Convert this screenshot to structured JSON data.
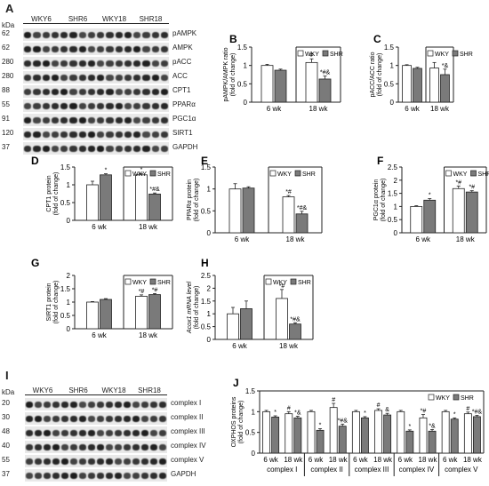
{
  "blot_A": {
    "label": "A",
    "kda_header": "kDa",
    "groups": [
      "WKY6",
      "SHR6",
      "WKY18",
      "SHR18"
    ],
    "rows": [
      {
        "kda": "62",
        "protein": "pAMPK"
      },
      {
        "kda": "62",
        "protein": "AMPK"
      },
      {
        "kda": "280",
        "protein": "pACC"
      },
      {
        "kda": "280",
        "protein": "ACC"
      },
      {
        "kda": "88",
        "protein": "CPT1"
      },
      {
        "kda": "55",
        "protein": "PPARα"
      },
      {
        "kda": "91",
        "protein": "PGC1α"
      },
      {
        "kda": "120",
        "protein": "SIRT1"
      },
      {
        "kda": "37",
        "protein": "GAPDH"
      }
    ]
  },
  "blot_I": {
    "label": "I",
    "kda_header": "kDa",
    "groups": [
      "WKY6",
      "SHR6",
      "WKY18",
      "SHR18"
    ],
    "rows": [
      {
        "kda": "20",
        "protein": "complex I"
      },
      {
        "kda": "30",
        "protein": "complex II"
      },
      {
        "kda": "48",
        "protein": "complex III"
      },
      {
        "kda": "40",
        "protein": "complex IV"
      },
      {
        "kda": "55",
        "protein": "complex V"
      },
      {
        "kda": "37",
        "protein": "GAPDH"
      }
    ]
  },
  "legend": {
    "wky": "WKY",
    "shr": "SHR"
  },
  "colors": {
    "wky": "#ffffff",
    "shr": "#7a7a7a"
  },
  "chart_data": [
    {
      "panel": "B",
      "type": "bar",
      "ylabel": "pAMPK/AMPK ratio (fold of change)",
      "ylim": [
        0,
        1.5
      ],
      "yticks": [
        "0",
        "0.5",
        "1",
        "1.5"
      ],
      "categories": [
        "6 wk",
        "18 wk"
      ],
      "series": [
        {
          "name": "WKY",
          "values": [
            1.0,
            1.08
          ],
          "errors": [
            0.03,
            0.1
          ],
          "annotations": [
            "",
            "#"
          ]
        },
        {
          "name": "SHR",
          "values": [
            0.87,
            0.63
          ],
          "errors": [
            0.03,
            0.08
          ],
          "annotations": [
            "",
            "*#&"
          ]
        }
      ]
    },
    {
      "panel": "C",
      "type": "bar",
      "ylabel": "pACC/ACC ratio (fold of change)",
      "ylim": [
        0,
        1.5
      ],
      "yticks": [
        "0",
        "0.5",
        "1",
        "1.5"
      ],
      "categories": [
        "6 wk",
        "18 wk"
      ],
      "series": [
        {
          "name": "WKY",
          "values": [
            1.0,
            0.93
          ],
          "errors": [
            0.02,
            0.15
          ],
          "annotations": [
            "",
            ""
          ]
        },
        {
          "name": "SHR",
          "values": [
            0.92,
            0.75
          ],
          "errors": [
            0.03,
            0.15
          ],
          "annotations": [
            "",
            "*&"
          ]
        }
      ]
    },
    {
      "panel": "D",
      "type": "bar",
      "ylabel": "CPT1 protein (fold of change)",
      "ylim": [
        0,
        1.5
      ],
      "yticks": [
        "0",
        "0.5",
        "1",
        "1.5"
      ],
      "categories": [
        "6 wk",
        "18 wk"
      ],
      "series": [
        {
          "name": "WKY",
          "values": [
            1.0,
            1.28
          ],
          "errors": [
            0.1,
            0.04
          ],
          "annotations": [
            "",
            "*"
          ]
        },
        {
          "name": "SHR",
          "values": [
            1.28,
            0.74
          ],
          "errors": [
            0.03,
            0.03
          ],
          "annotations": [
            "*",
            "*#&"
          ]
        }
      ]
    },
    {
      "panel": "E",
      "type": "bar",
      "ylabel": "PPARα protein (fold of change)",
      "ylim": [
        0,
        1.5
      ],
      "yticks": [
        "0",
        "0.5",
        "1",
        "1.5"
      ],
      "categories": [
        "6 wk",
        "18 wk"
      ],
      "series": [
        {
          "name": "WKY",
          "values": [
            1.0,
            0.82
          ],
          "errors": [
            0.12,
            0.03
          ],
          "annotations": [
            "",
            "*#"
          ]
        },
        {
          "name": "SHR",
          "values": [
            1.02,
            0.43
          ],
          "errors": [
            0.03,
            0.06
          ],
          "annotations": [
            "",
            "*#&"
          ]
        }
      ]
    },
    {
      "panel": "F",
      "type": "bar",
      "ylabel": "PGC1α protein (fold of change)",
      "ylim": [
        0,
        2.5
      ],
      "yticks": [
        "0",
        "0.5",
        "1",
        "1.5",
        "2",
        "2.5"
      ],
      "categories": [
        "6 wk",
        "18 wk"
      ],
      "series": [
        {
          "name": "WKY",
          "values": [
            1.0,
            1.68
          ],
          "errors": [
            0.03,
            0.1
          ],
          "annotations": [
            "",
            "*#"
          ]
        },
        {
          "name": "SHR",
          "values": [
            1.24,
            1.55
          ],
          "errors": [
            0.06,
            0.05
          ],
          "annotations": [
            "*",
            "*#"
          ]
        }
      ]
    },
    {
      "panel": "G",
      "type": "bar",
      "ylabel": "SIRT1 protein (fold of change)",
      "ylim": [
        0,
        2.0
      ],
      "yticks": [
        "0",
        "0.5",
        "1",
        "1.5",
        "2"
      ],
      "categories": [
        "6 wk",
        "18 wk"
      ],
      "series": [
        {
          "name": "WKY",
          "values": [
            1.0,
            1.22
          ],
          "errors": [
            0.02,
            0.05
          ],
          "annotations": [
            "",
            "*#"
          ]
        },
        {
          "name": "SHR",
          "values": [
            1.1,
            1.28
          ],
          "errors": [
            0.03,
            0.04
          ],
          "annotations": [
            "",
            "*#"
          ]
        }
      ]
    },
    {
      "panel": "H",
      "type": "bar",
      "ylabel": "Acox1 mRNA level (fold of change)",
      "ylim": [
        0,
        2.5
      ],
      "yticks": [
        "0",
        "0.5",
        "1",
        "1.5",
        "2",
        "2.5"
      ],
      "categories": [
        "6 wk",
        "18 wk"
      ],
      "series": [
        {
          "name": "WKY",
          "values": [
            1.0,
            1.6
          ],
          "errors": [
            0.25,
            0.35
          ],
          "annotations": [
            "",
            "*#"
          ]
        },
        {
          "name": "SHR",
          "values": [
            1.2,
            0.6
          ],
          "errors": [
            0.3,
            0.05
          ],
          "annotations": [
            "",
            "*#&"
          ]
        }
      ]
    },
    {
      "panel": "J",
      "type": "bar",
      "ylabel": "OXPHOS proteins (fold of change)",
      "ylim": [
        0,
        1.5
      ],
      "yticks": [
        "0",
        "0.5",
        "1",
        "1.5"
      ],
      "groups": [
        "complex I",
        "complex II",
        "complex III",
        "complex IV",
        "complex V"
      ],
      "categories": [
        "6 wk",
        "18 wk",
        "6 wk",
        "18 wk",
        "6 wk",
        "18 wk",
        "6 wk",
        "18 wk",
        "6 wk",
        "18 wk"
      ],
      "series": [
        {
          "name": "WKY",
          "values": [
            1.0,
            0.95,
            1.0,
            1.1,
            1.0,
            1.03,
            1.0,
            0.85,
            1.0,
            0.95
          ],
          "errors": [
            0.03,
            0.05,
            0.03,
            0.1,
            0.03,
            0.04,
            0.03,
            0.08,
            0.03,
            0.04
          ],
          "annotations": [
            "",
            "#",
            "",
            "#",
            "",
            "#",
            "",
            "*#",
            "",
            "#"
          ]
        },
        {
          "name": "SHR",
          "values": [
            0.87,
            0.85,
            0.55,
            0.65,
            0.85,
            0.92,
            0.53,
            0.53,
            0.82,
            0.88
          ],
          "errors": [
            0.03,
            0.04,
            0.04,
            0.05,
            0.03,
            0.04,
            0.03,
            0.04,
            0.03,
            0.03
          ],
          "annotations": [
            "*",
            "*&",
            "*",
            "*#&",
            "*",
            "&",
            "*",
            "*&",
            "*",
            "*#&"
          ]
        }
      ]
    }
  ],
  "panel_labels": [
    "B",
    "C",
    "D",
    "E",
    "F",
    "G",
    "H",
    "J"
  ]
}
